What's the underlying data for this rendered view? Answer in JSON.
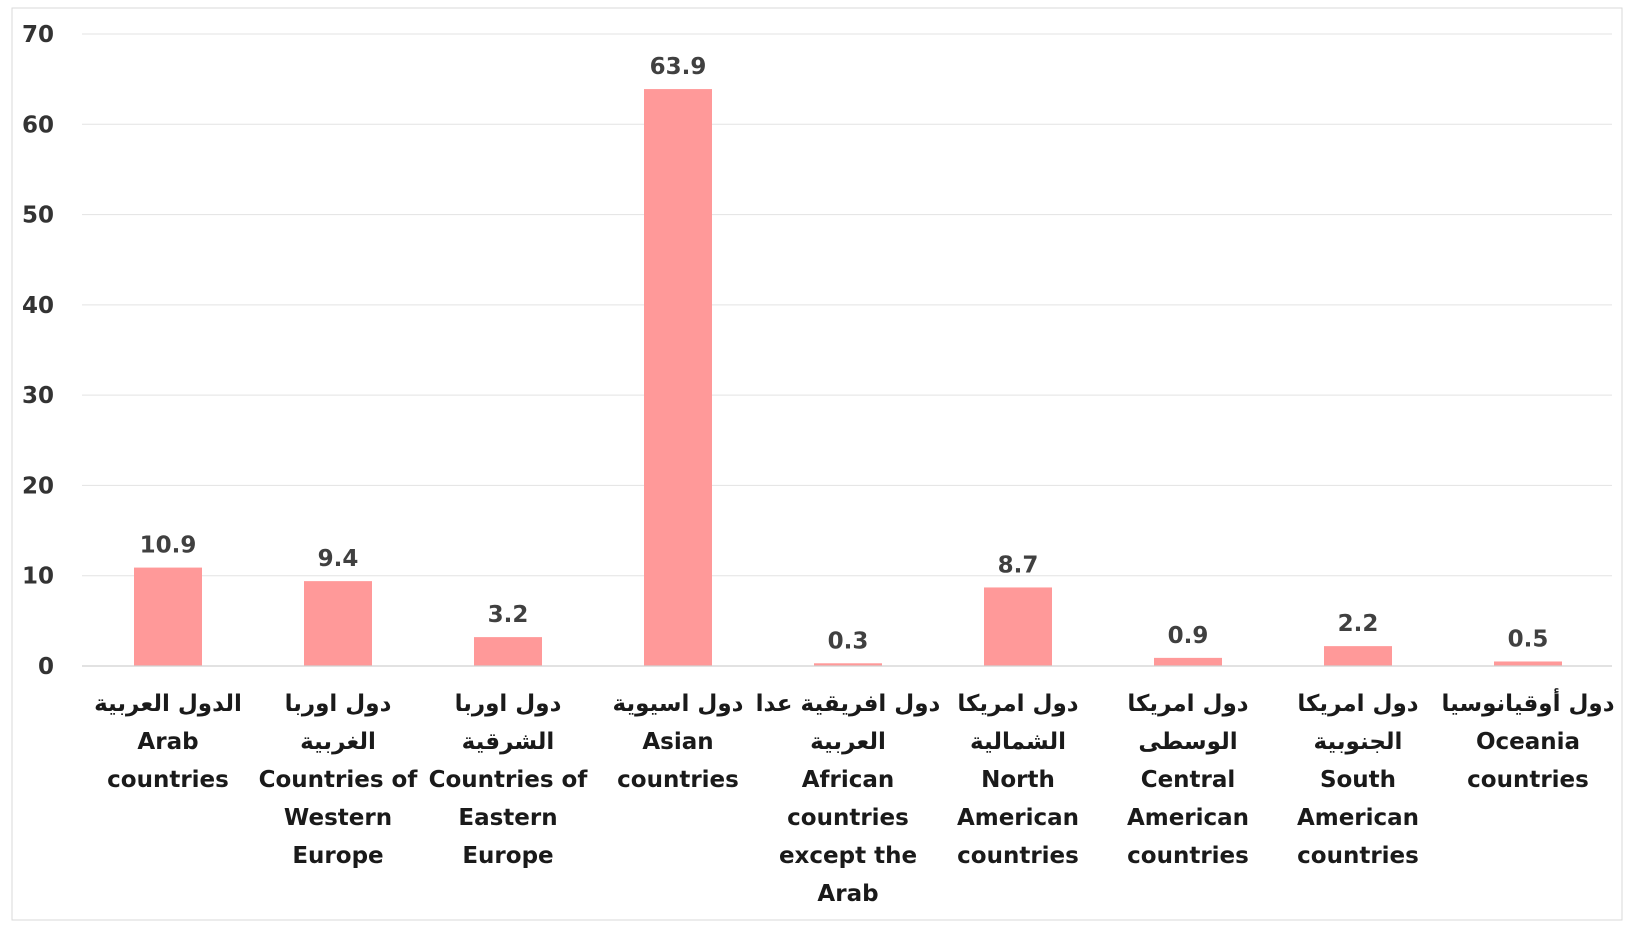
{
  "chart_data": {
    "type": "bar",
    "title": "",
    "xlabel": "",
    "ylabel": "",
    "ylim": [
      0,
      70
    ],
    "yticks": [
      0,
      10,
      20,
      30,
      40,
      50,
      60,
      70
    ],
    "grid": true,
    "legend": "none",
    "bar_color": "#ff9999",
    "categories": [
      {
        "ar": "الدول العربية",
        "en": [
          "Arab",
          "countries"
        ]
      },
      {
        "ar": [
          "دول اوربا",
          "الغربية"
        ],
        "en": [
          "Countries of",
          "Western",
          "Europe"
        ]
      },
      {
        "ar": [
          "دول اوربا",
          "الشرقية"
        ],
        "en": [
          "Countries of",
          "Eastern",
          "Europe"
        ]
      },
      {
        "ar": "دول اسيوية",
        "en": [
          "Asian",
          "countries"
        ]
      },
      {
        "ar": [
          "دول افريقية عدا",
          "العربية"
        ],
        "en": [
          "African",
          "countries",
          "except the",
          "Arab"
        ]
      },
      {
        "ar": [
          "دول امريكا",
          "الشمالية"
        ],
        "en": [
          "North",
          "American",
          "countries"
        ]
      },
      {
        "ar": [
          "دول امريكا",
          "الوسطى"
        ],
        "en": [
          "Central",
          "American",
          "countries"
        ]
      },
      {
        "ar": [
          "دول امريكا",
          "الجنوبية"
        ],
        "en": [
          "South",
          "American",
          "countries"
        ]
      },
      {
        "ar": "دول أوقيانوسيا",
        "en": [
          "Oceania",
          "countries"
        ]
      }
    ],
    "values": [
      10.9,
      9.4,
      3.2,
      63.9,
      0.3,
      8.7,
      0.9,
      2.2,
      0.5
    ],
    "data_labels": [
      "10.9",
      "9.4",
      "3.2",
      "63.9",
      "0.3",
      "8.7",
      "0.9",
      "2.2",
      "0.5"
    ]
  }
}
